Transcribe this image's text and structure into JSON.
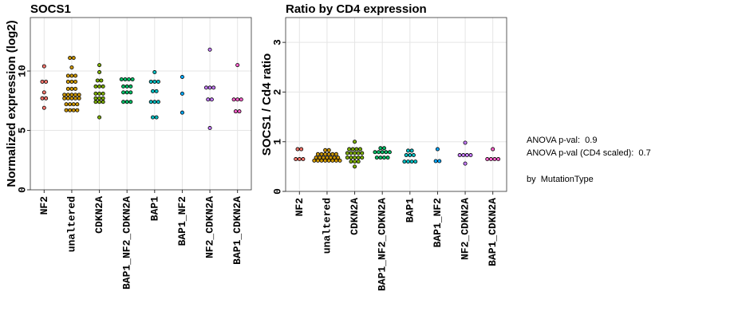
{
  "chart_data": [
    {
      "type": "dot",
      "title": "SOCS1",
      "ylabel": "Normalized expression (log2)",
      "categories": [
        "NF2",
        "unaltered",
        "CDKN2A",
        "BAP1_NF2_CDKN2A",
        "BAP1",
        "BAP1_NF2",
        "NF2_CDKN2A",
        "BAP1_CDKN2A"
      ],
      "colors": [
        "#F8766D",
        "#CD9600",
        "#7CAE00",
        "#00BE67",
        "#00BFC4",
        "#00A9FF",
        "#C77CFF",
        "#FF61CC"
      ],
      "values": [
        [
          10.4,
          9.1,
          9.1,
          8.2,
          7.7,
          7.7,
          6.9
        ],
        [
          11.1,
          11.1,
          10.3,
          9.6,
          9.6,
          9.6,
          9.1,
          9.1,
          9.1,
          8.5,
          8.5,
          8.5,
          8.0,
          8.0,
          8.0,
          8.0,
          8.0,
          7.7,
          7.7,
          7.7,
          7.7,
          7.7,
          7.2,
          7.2,
          7.2,
          7.2,
          6.7,
          6.7,
          6.7,
          6.7
        ],
        [
          10.5,
          9.9,
          9.2,
          9.2,
          8.7,
          8.7,
          8.7,
          8.1,
          8.1,
          8.1,
          7.7,
          7.7,
          7.7,
          7.4,
          7.4,
          7.4,
          6.1
        ],
        [
          9.3,
          9.3,
          9.3,
          9.3,
          8.7,
          8.7,
          8.7,
          8.2,
          8.2,
          8.2,
          7.4,
          7.4,
          7.4
        ],
        [
          9.9,
          9.1,
          9.1,
          9.1,
          8.3,
          8.3,
          7.4,
          7.4,
          7.4,
          6.1,
          6.1
        ],
        [
          9.5,
          8.1,
          6.5
        ],
        [
          11.8,
          8.6,
          8.6,
          8.6,
          7.6,
          7.6,
          5.2
        ],
        [
          10.5,
          7.6,
          7.6,
          7.6,
          6.6,
          6.6
        ]
      ],
      "ylim": [
        0,
        14.5
      ],
      "yticks": [
        0,
        5,
        10
      ],
      "grid": true
    },
    {
      "type": "dot",
      "title": "Ratio by CD4 expression",
      "ylabel": "SOCS1 / Cd4 ratio",
      "categories": [
        "NF2",
        "unaltered",
        "CDKN2A",
        "BAP1_NF2_CDKN2A",
        "BAP1",
        "BAP1_NF2",
        "NF2_CDKN2A",
        "BAP1_CDKN2A"
      ],
      "colors": [
        "#F8766D",
        "#CD9600",
        "#7CAE00",
        "#00BE67",
        "#00BFC4",
        "#00A9FF",
        "#C77CFF",
        "#FF61CC"
      ],
      "values": [
        [
          0.85,
          0.85,
          0.65,
          0.65,
          0.65
        ],
        [
          0.83,
          0.83,
          0.75,
          0.75,
          0.75,
          0.75,
          0.75,
          0.75,
          0.68,
          0.68,
          0.68,
          0.68,
          0.68,
          0.68,
          0.68,
          0.62,
          0.62,
          0.62,
          0.62,
          0.62,
          0.62,
          0.62,
          0.62
        ],
        [
          1.0,
          0.85,
          0.85,
          0.85,
          0.85,
          0.77,
          0.77,
          0.77,
          0.77,
          0.77,
          0.68,
          0.68,
          0.68,
          0.68,
          0.68,
          0.6,
          0.6,
          0.6,
          0.5
        ],
        [
          0.87,
          0.87,
          0.79,
          0.79,
          0.79,
          0.79,
          0.79,
          0.68,
          0.68,
          0.68,
          0.68
        ],
        [
          0.82,
          0.82,
          0.73,
          0.73,
          0.73,
          0.6,
          0.6,
          0.6,
          0.6
        ],
        [
          0.85,
          0.61,
          0.61
        ],
        [
          0.98,
          0.73,
          0.73,
          0.73,
          0.73,
          0.56
        ],
        [
          0.85,
          0.65,
          0.65,
          0.65,
          0.65
        ]
      ],
      "ylim": [
        0,
        3.5
      ],
      "yticks": [
        0,
        1,
        2,
        3
      ],
      "grid": true
    }
  ],
  "annotations": [
    "ANOVA p-val:  0.9",
    "ANOVA p-val (CD4 scaled):  0.7",
    "by  MutationType"
  ]
}
